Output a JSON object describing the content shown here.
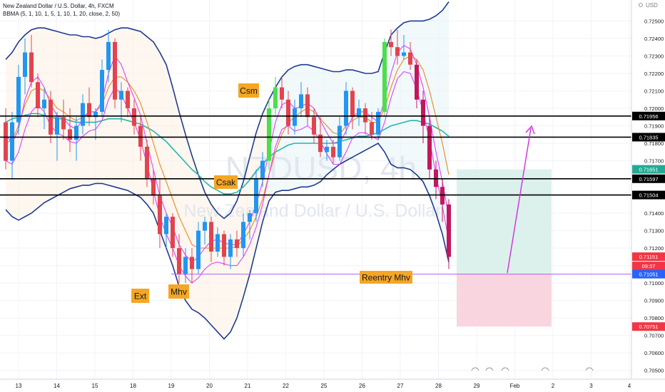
{
  "header": {
    "symbol_line": "New Zealand Dollar / U.S. Dollar, 4h, FXCM",
    "indicator_line": "BBMA (5, 1, 10, 1, 5, 1, 10, 1, 20, close, 2, 50)"
  },
  "watermark": {
    "ticker": "NZDUSD, 4h",
    "name": "New Zealand Dollar / U.S. Dollar"
  },
  "chart_data": {
    "type": "candlestick",
    "title": "New Zealand Dollar / U.S. Dollar, 4h, FXCM",
    "currency_label": "USD",
    "ylim": [
      0.7045,
      0.7262
    ],
    "y_ticks": [
      "0.72500",
      "0.72400",
      "0.72300",
      "0.72200",
      "0.72100",
      "0.72000",
      "0.71900",
      "0.71800",
      "0.71700",
      "0.71600",
      "0.71500",
      "0.71400",
      "0.71300",
      "0.71200",
      "0.71100",
      "0.71000",
      "0.70900",
      "0.70800",
      "0.70700",
      "0.70600",
      "0.70500"
    ],
    "x_ticks": [
      "13",
      "14",
      "15",
      "18",
      "19",
      "20",
      "21",
      "22",
      "25",
      "26",
      "27",
      "28",
      "29",
      "Feb",
      "2",
      "3",
      "4"
    ],
    "horizontal_levels": [
      {
        "price": 0.71956,
        "label": "0.71956",
        "style": "black"
      },
      {
        "price": 0.71835,
        "label": "0.71835",
        "style": "black"
      },
      {
        "price": 0.71597,
        "label": "0.71597",
        "style": "black"
      },
      {
        "price": 0.71504,
        "label": "0.71504",
        "style": "black"
      },
      {
        "price": 0.71051,
        "label": "0.71051",
        "style": "violet"
      }
    ],
    "price_badges": [
      {
        "price": 0.71651,
        "label": "0.71651",
        "color": "#22ab94"
      },
      {
        "price": 0.71151,
        "label": "0.71151",
        "color": "#f23645"
      },
      {
        "price": 0.71098,
        "label": "09:37",
        "color": "#f23645"
      },
      {
        "price": 0.71051,
        "label": "0.71051",
        "color": "#2962ff"
      },
      {
        "price": 0.70751,
        "label": "0.70751",
        "color": "#f23645"
      }
    ],
    "position": {
      "entry": 0.71051,
      "target": 0.71651,
      "stop": 0.70751
    },
    "annotations": [
      "Csm",
      "Csak",
      "Ext",
      "Mhv",
      "Reentry Mhv"
    ],
    "candles": [
      [
        0.7192,
        0.72,
        0.7165,
        0.717
      ],
      [
        0.717,
        0.7198,
        0.716,
        0.7192
      ],
      [
        0.7192,
        0.7225,
        0.7185,
        0.7218
      ],
      [
        0.7218,
        0.724,
        0.7208,
        0.7232
      ],
      [
        0.7232,
        0.7242,
        0.7212,
        0.7215
      ],
      [
        0.7215,
        0.722,
        0.7195,
        0.72
      ],
      [
        0.72,
        0.7212,
        0.7188,
        0.7205
      ],
      [
        0.7205,
        0.721,
        0.718,
        0.7185
      ],
      [
        0.7185,
        0.7198,
        0.717,
        0.7195
      ],
      [
        0.7195,
        0.7205,
        0.7182,
        0.7188
      ],
      [
        0.7188,
        0.72,
        0.7175,
        0.7182
      ],
      [
        0.7182,
        0.7195,
        0.717,
        0.719
      ],
      [
        0.719,
        0.7208,
        0.7185,
        0.7203
      ],
      [
        0.7203,
        0.7212,
        0.719,
        0.7195
      ],
      [
        0.7195,
        0.72,
        0.7182,
        0.7198
      ],
      [
        0.7198,
        0.7228,
        0.7195,
        0.7222
      ],
      [
        0.7222,
        0.7245,
        0.7215,
        0.7238
      ],
      [
        0.7238,
        0.724,
        0.72,
        0.7205
      ],
      [
        0.7205,
        0.7215,
        0.7192,
        0.721
      ],
      [
        0.721,
        0.7212,
        0.7195,
        0.72
      ],
      [
        0.72,
        0.7205,
        0.7185,
        0.719
      ],
      [
        0.719,
        0.7195,
        0.717,
        0.7178
      ],
      [
        0.7178,
        0.7182,
        0.7155,
        0.716
      ],
      [
        0.716,
        0.7165,
        0.7145,
        0.715
      ],
      [
        0.715,
        0.716,
        0.712,
        0.7128
      ],
      [
        0.7128,
        0.714,
        0.712,
        0.7138
      ],
      [
        0.7138,
        0.714,
        0.7115,
        0.712
      ],
      [
        0.712,
        0.7128,
        0.71,
        0.7105
      ],
      [
        0.7105,
        0.712,
        0.71,
        0.7115
      ],
      [
        0.7115,
        0.712,
        0.71,
        0.7108
      ],
      [
        0.7108,
        0.7135,
        0.7105,
        0.713
      ],
      [
        0.713,
        0.7138,
        0.7122,
        0.7135
      ],
      [
        0.7135,
        0.7138,
        0.7112,
        0.7118
      ],
      [
        0.7118,
        0.7132,
        0.7115,
        0.7128
      ],
      [
        0.7128,
        0.713,
        0.711,
        0.7115
      ],
      [
        0.7115,
        0.7128,
        0.7108,
        0.7125
      ],
      [
        0.7125,
        0.713,
        0.7115,
        0.712
      ],
      [
        0.712,
        0.714,
        0.7115,
        0.7135
      ],
      [
        0.7135,
        0.7142,
        0.7125,
        0.714
      ],
      [
        0.714,
        0.7165,
        0.7135,
        0.716
      ],
      [
        0.716,
        0.7175,
        0.7155,
        0.717
      ],
      [
        0.717,
        0.7205,
        0.7165,
        0.72
      ],
      [
        0.72,
        0.7218,
        0.7195,
        0.7212
      ],
      [
        0.7212,
        0.7218,
        0.72,
        0.7205
      ],
      [
        0.7205,
        0.721,
        0.7185,
        0.719
      ],
      [
        0.719,
        0.7205,
        0.7185,
        0.72
      ],
      [
        0.72,
        0.7215,
        0.7195,
        0.7208
      ],
      [
        0.7208,
        0.7212,
        0.719,
        0.7195
      ],
      [
        0.7195,
        0.72,
        0.718,
        0.7185
      ],
      [
        0.7185,
        0.7195,
        0.7172,
        0.7175
      ],
      [
        0.7175,
        0.7182,
        0.717,
        0.7178
      ],
      [
        0.7178,
        0.7182,
        0.7168,
        0.7172
      ],
      [
        0.7172,
        0.7195,
        0.717,
        0.719
      ],
      [
        0.719,
        0.7215,
        0.7185,
        0.721
      ],
      [
        0.721,
        0.7212,
        0.7188,
        0.7195
      ],
      [
        0.7195,
        0.7205,
        0.719,
        0.72
      ],
      [
        0.72,
        0.7203,
        0.7185,
        0.7192
      ],
      [
        0.7192,
        0.7198,
        0.7182,
        0.7185
      ],
      [
        0.7185,
        0.72,
        0.7182,
        0.7198
      ],
      [
        0.7198,
        0.724,
        0.7195,
        0.7238
      ],
      [
        0.7238,
        0.7245,
        0.723,
        0.7235
      ],
      [
        0.7235,
        0.7245,
        0.7225,
        0.723
      ],
      [
        0.723,
        0.7242,
        0.7228,
        0.7232
      ],
      [
        0.7232,
        0.7238,
        0.7222,
        0.7225
      ],
      [
        0.7225,
        0.7228,
        0.72,
        0.7205
      ],
      [
        0.7205,
        0.721,
        0.718,
        0.719
      ],
      [
        0.719,
        0.7195,
        0.716,
        0.7165
      ],
      [
        0.7165,
        0.717,
        0.7148,
        0.7155
      ],
      [
        0.7155,
        0.716,
        0.7135,
        0.7145
      ],
      [
        0.7145,
        0.7148,
        0.7108,
        0.7115
      ]
    ],
    "series": [
      {
        "name": "",
        "color": "#1f3a93",
        "values": [
          0.7228,
          0.7232,
          0.7238,
          0.7242,
          0.7245,
          0.7246,
          0.7246,
          0.7245,
          0.7244,
          0.7243,
          0.7242,
          0.7242,
          0.7241,
          0.7241,
          0.724,
          0.7241,
          0.7243,
          0.7245,
          0.7246,
          0.7246,
          0.7245,
          0.7244,
          0.7241,
          0.7238,
          0.7232,
          0.7225,
          0.7212,
          0.7198,
          0.7185,
          0.7173,
          0.7162,
          0.7152,
          0.7145,
          0.714,
          0.7137,
          0.714,
          0.7147,
          0.7158,
          0.7172,
          0.7186,
          0.7197,
          0.7205,
          0.7212,
          0.7218,
          0.7222,
          0.7224,
          0.7225,
          0.7225,
          0.7224,
          0.7223,
          0.7222,
          0.7221,
          0.7221,
          0.7222,
          0.7222,
          0.7221,
          0.722,
          0.722,
          0.7221,
          0.7232,
          0.7242,
          0.7246,
          0.7249,
          0.725,
          0.725,
          0.725,
          0.7251,
          0.7253,
          0.7256,
          0.7261
        ]
      },
      {
        "name": "",
        "color": "#1f3a93",
        "values": [
          0.7142,
          0.7138,
          0.7136,
          0.7138,
          0.714,
          0.7143,
          0.7146,
          0.7148,
          0.715,
          0.7152,
          0.7154,
          0.7155,
          0.7156,
          0.7156,
          0.7157,
          0.7157,
          0.7156,
          0.7155,
          0.7154,
          0.7153,
          0.7151,
          0.7149,
          0.7145,
          0.714,
          0.713,
          0.712,
          0.711,
          0.7098,
          0.709,
          0.7085,
          0.7083,
          0.708,
          0.7076,
          0.7072,
          0.7068,
          0.7072,
          0.708,
          0.7092,
          0.7105,
          0.712,
          0.7135,
          0.7147,
          0.7152,
          0.7153,
          0.7153,
          0.7154,
          0.7155,
          0.7155,
          0.7156,
          0.7158,
          0.7162,
          0.7165,
          0.7168,
          0.717,
          0.7172,
          0.7174,
          0.7176,
          0.7178,
          0.718,
          0.7175,
          0.7168,
          0.7166,
          0.7166,
          0.7165,
          0.7162,
          0.7158,
          0.715,
          0.714,
          0.7128,
          0.7112
        ]
      },
      {
        "name": "",
        "color": "#26b5b0",
        "values": [
          0.7192,
          0.7194,
          0.7195,
          0.7196,
          0.7197,
          0.7197,
          0.7196,
          0.7195,
          0.7194,
          0.7194,
          0.7193,
          0.7192,
          0.7192,
          0.7192,
          0.7192,
          0.7193,
          0.7194,
          0.7194,
          0.7194,
          0.7193,
          0.7192,
          0.7191,
          0.7189,
          0.7187,
          0.7184,
          0.7181,
          0.7177,
          0.7173,
          0.7169,
          0.7165,
          0.7162,
          0.7158,
          0.7155,
          0.7153,
          0.7151,
          0.7151,
          0.7152,
          0.7155,
          0.7159,
          0.7164,
          0.7168,
          0.7172,
          0.7175,
          0.7177,
          0.7179,
          0.718,
          0.718,
          0.718,
          0.718,
          0.718,
          0.718,
          0.718,
          0.7181,
          0.7182,
          0.7183,
          0.7184,
          0.7184,
          0.7185,
          0.7186,
          0.7188,
          0.719,
          0.7191,
          0.7192,
          0.7193,
          0.7193,
          0.7192,
          0.7191,
          0.7189,
          0.7187,
          0.7184
        ]
      },
      {
        "name": "",
        "color": "#e68a1e",
        "values": [
          0.718,
          0.7182,
          0.719,
          0.7202,
          0.721,
          0.7212,
          0.721,
          0.7205,
          0.72,
          0.7198,
          0.7195,
          0.7193,
          0.7195,
          0.7198,
          0.7198,
          0.7202,
          0.7212,
          0.7218,
          0.7218,
          0.7215,
          0.721,
          0.7203,
          0.7192,
          0.718,
          0.7168,
          0.7158,
          0.7148,
          0.7138,
          0.713,
          0.7122,
          0.712,
          0.712,
          0.712,
          0.712,
          0.712,
          0.712,
          0.7121,
          0.7125,
          0.713,
          0.7138,
          0.7148,
          0.7162,
          0.7175,
          0.7185,
          0.7192,
          0.7195,
          0.7198,
          0.72,
          0.7198,
          0.7194,
          0.719,
          0.7186,
          0.7185,
          0.719,
          0.7193,
          0.7195,
          0.7195,
          0.7192,
          0.7192,
          0.72,
          0.7212,
          0.7222,
          0.7228,
          0.723,
          0.7228,
          0.7222,
          0.721,
          0.7195,
          0.718,
          0.7162
        ]
      },
      {
        "name": "",
        "color": "#e040fb",
        "values": [
          0.7185,
          0.718,
          0.7188,
          0.7205,
          0.7215,
          0.7218,
          0.7212,
          0.7202,
          0.7196,
          0.7194,
          0.719,
          0.7188,
          0.7194,
          0.7198,
          0.7198,
          0.7204,
          0.722,
          0.723,
          0.7225,
          0.7215,
          0.7206,
          0.7196,
          0.718,
          0.7165,
          0.715,
          0.714,
          0.7132,
          0.7122,
          0.7116,
          0.7112,
          0.7115,
          0.712,
          0.7124,
          0.7125,
          0.7123,
          0.7122,
          0.7122,
          0.7128,
          0.7135,
          0.7145,
          0.7158,
          0.7175,
          0.7192,
          0.7202,
          0.7204,
          0.72,
          0.7201,
          0.7203,
          0.72,
          0.7193,
          0.7186,
          0.718,
          0.718,
          0.7187,
          0.7195,
          0.7198,
          0.7198,
          0.7195,
          0.7192,
          0.7205,
          0.722,
          0.7232,
          0.7236,
          0.7234,
          0.7225,
          0.7212,
          0.7195,
          0.7175,
          0.7158,
          0.7138
        ]
      },
      {
        "name": "",
        "color": "#e040fb",
        "values": [
          0.717,
          0.7168,
          0.7175,
          0.7188,
          0.7198,
          0.7202,
          0.7198,
          0.719,
          0.7186,
          0.7184,
          0.7181,
          0.718,
          0.7184,
          0.7187,
          0.7188,
          0.7193,
          0.7205,
          0.7212,
          0.7208,
          0.72,
          0.7192,
          0.7182,
          0.7168,
          0.7153,
          0.7138,
          0.7128,
          0.712,
          0.711,
          0.7104,
          0.71,
          0.7103,
          0.7108,
          0.7111,
          0.7112,
          0.7111,
          0.711,
          0.711,
          0.7115,
          0.7122,
          0.7132,
          0.7145,
          0.7162,
          0.7178,
          0.7188,
          0.719,
          0.7187,
          0.7188,
          0.719,
          0.7187,
          0.7181,
          0.7174,
          0.7168,
          0.7168,
          0.7175,
          0.7183,
          0.7186,
          0.7186,
          0.7184,
          0.7182,
          0.7192,
          0.7206,
          0.7217,
          0.7221,
          0.722,
          0.7211,
          0.7198,
          0.7182,
          0.7162,
          0.7144,
          0.7124
        ]
      }
    ]
  },
  "labels": {
    "csm": "Csm",
    "csak": "Csak",
    "ext": "Ext",
    "mhv": "Mhv",
    "reentry": "Reentry Mhv"
  },
  "colors": {
    "up": "#2196f3",
    "up_strong": "#4cde4c",
    "down": "#e2444f",
    "down_strong": "#c2185b",
    "label_bg": "#f5a623",
    "arrow": "#d22ce0"
  }
}
